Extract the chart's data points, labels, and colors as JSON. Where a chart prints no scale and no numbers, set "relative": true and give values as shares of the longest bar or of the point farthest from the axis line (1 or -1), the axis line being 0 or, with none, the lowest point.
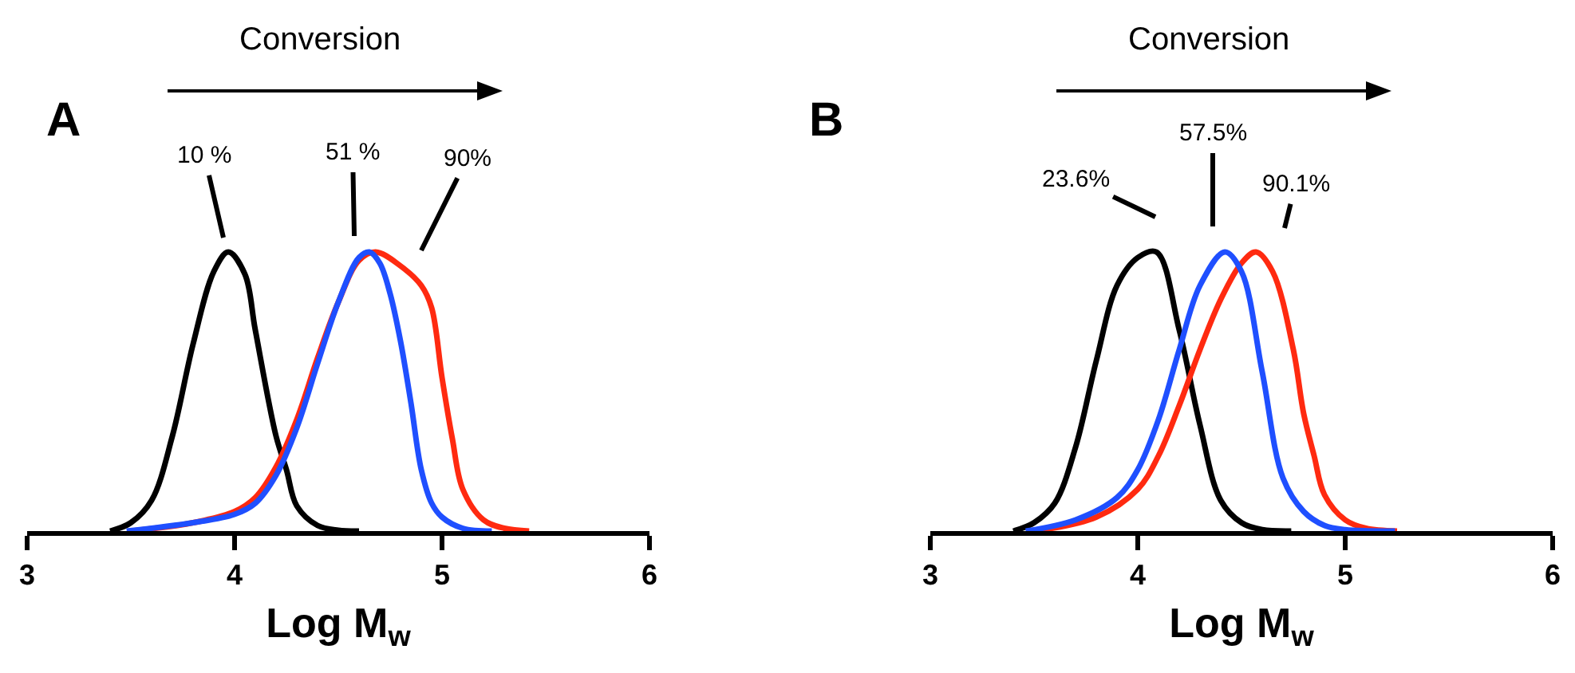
{
  "chart_data": [
    {
      "type": "line",
      "relative": true,
      "xlabel": "Log M$_{w}$",
      "xlim": [
        3,
        6
      ],
      "xticks": [
        3,
        4,
        5,
        6
      ],
      "grid": false,
      "marker": "none",
      "line_style": "solid",
      "annotations": [
        "A",
        "Conversion",
        "10 %",
        "51 %",
        "90%"
      ],
      "series": [
        {
          "color": "#000000",
          "x": [
            3.4,
            3.5,
            3.6,
            3.7,
            3.8,
            3.9,
            3.97,
            4.05,
            4.1,
            4.2,
            4.25,
            4.3,
            4.4,
            4.5,
            4.6
          ],
          "values": [
            0,
            0.03,
            0.11,
            0.34,
            0.67,
            0.93,
            1,
            0.92,
            0.72,
            0.34,
            0.22,
            0.09,
            0.02,
            0.003,
            0
          ]
        },
        {
          "color": "#ff2a10",
          "x": [
            3.5,
            3.8,
            4.0,
            4.1,
            4.2,
            4.3,
            4.4,
            4.5,
            4.6,
            4.68,
            4.8,
            4.9,
            4.95,
            5.0,
            5.05,
            5.1,
            5.2,
            5.3,
            5.42
          ],
          "values": [
            0,
            0.03,
            0.07,
            0.12,
            0.23,
            0.4,
            0.62,
            0.82,
            0.97,
            1,
            0.95,
            0.88,
            0.8,
            0.55,
            0.33,
            0.15,
            0.04,
            0.01,
            0
          ]
        },
        {
          "color": "#1f4fff",
          "x": [
            3.48,
            3.8,
            4.0,
            4.1,
            4.2,
            4.3,
            4.4,
            4.5,
            4.6,
            4.65,
            4.7,
            4.75,
            4.8,
            4.85,
            4.9,
            4.95,
            5.0,
            5.1,
            5.24
          ],
          "values": [
            0,
            0.03,
            0.06,
            0.1,
            0.2,
            0.37,
            0.6,
            0.82,
            0.98,
            1,
            0.96,
            0.85,
            0.68,
            0.46,
            0.22,
            0.1,
            0.05,
            0.01,
            0
          ]
        }
      ]
    },
    {
      "type": "line",
      "relative": true,
      "xlabel": "Log M$_{w}$",
      "xlim": [
        3,
        6
      ],
      "xticks": [
        3,
        4,
        5,
        6
      ],
      "grid": false,
      "marker": "none",
      "line_style": "solid",
      "annotations": [
        "B",
        "Conversion",
        "23.6%",
        "57.5%",
        "90.1%"
      ],
      "series": [
        {
          "color": "#000000",
          "x": [
            3.4,
            3.5,
            3.6,
            3.7,
            3.8,
            3.9,
            4.0,
            4.09,
            4.2,
            4.3,
            4.4,
            4.5,
            4.6,
            4.74
          ],
          "values": [
            0,
            0.03,
            0.1,
            0.3,
            0.61,
            0.88,
            0.98,
            1,
            0.72,
            0.38,
            0.11,
            0.03,
            0.005,
            0
          ]
        },
        {
          "color": "#ff2a10",
          "x": [
            3.5,
            3.8,
            4.0,
            4.1,
            4.2,
            4.3,
            4.4,
            4.5,
            4.57,
            4.65,
            4.75,
            4.8,
            4.85,
            4.9,
            5.0,
            5.1,
            5.25
          ],
          "values": [
            0,
            0.05,
            0.15,
            0.27,
            0.45,
            0.65,
            0.83,
            0.96,
            1,
            0.93,
            0.65,
            0.42,
            0.27,
            0.13,
            0.04,
            0.01,
            0
          ]
        },
        {
          "color": "#1f4fff",
          "x": [
            3.46,
            3.7,
            3.9,
            4.0,
            4.1,
            4.2,
            4.3,
            4.42,
            4.5,
            4.6,
            4.7,
            4.8,
            4.9,
            5.0,
            5.24
          ],
          "values": [
            0,
            0.04,
            0.12,
            0.22,
            0.4,
            0.65,
            0.88,
            1,
            0.93,
            0.57,
            0.19,
            0.07,
            0.02,
            0.005,
            0
          ]
        }
      ]
    }
  ]
}
